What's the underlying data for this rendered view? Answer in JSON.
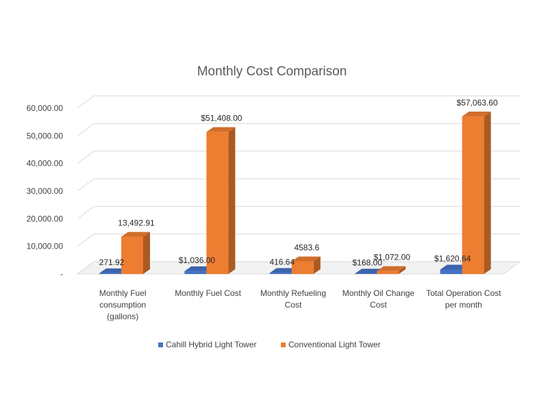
{
  "chart_data": {
    "type": "bar",
    "title": "Monthly Cost Comparison",
    "categories": [
      [
        "Monthly Fuel",
        "consumption",
        "(gallons)"
      ],
      [
        "Monthly Fuel Cost"
      ],
      [
        "Monthly Refueling",
        "Cost"
      ],
      [
        "Monthly Oil Change",
        "Cost"
      ],
      [
        "Total Operation Cost",
        "per month"
      ]
    ],
    "y_ticks": [
      "-",
      "10,000.00",
      "20,000.00",
      "30,000.00",
      "40,000.00",
      "50,000.00",
      "60,000.00"
    ],
    "ylim": [
      0,
      60000
    ],
    "grid": true,
    "legend_position": "bottom",
    "series": [
      {
        "name": "Cahill Hybrid Light Tower",
        "color": "#4472C4",
        "values": [
          271.92,
          1036.0,
          416.64,
          168.0,
          1620.64
        ],
        "labels": [
          "271.92",
          "$1,036.00",
          "416.64",
          "$168.00",
          "$1,620.64"
        ]
      },
      {
        "name": "Conventional Light Tower",
        "color": "#ED7D31",
        "values": [
          13492.91,
          51408.0,
          4583.6,
          1072.0,
          57063.6
        ],
        "labels": [
          "13,492.91",
          "$51,408.00",
          "4583.6",
          "$1,072.00",
          "$57,063.60"
        ]
      }
    ]
  }
}
